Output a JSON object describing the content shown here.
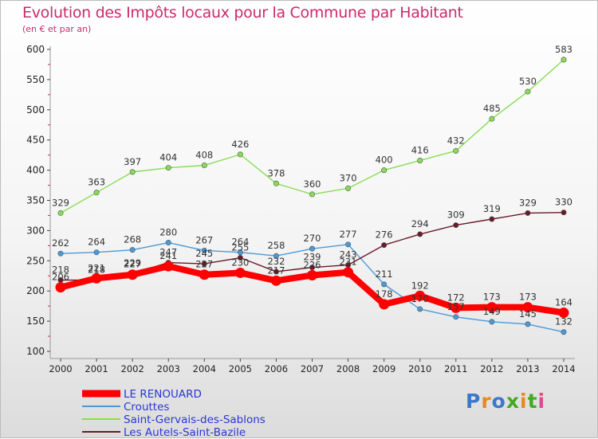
{
  "header": {
    "title": "Evolution des Impôts locaux pour la Commune par Habitant",
    "subtitle": "(en € et par an)"
  },
  "brand": {
    "name": "Proxiti",
    "colors": [
      "#3a78c8",
      "#e88a1a",
      "#3a78c8",
      "#44aa22",
      "#e88a1a",
      "#44aa22",
      "#e04a8a"
    ]
  },
  "chart_data": {
    "type": "line",
    "title": "Evolution des Impôts locaux pour la Commune par Habitant",
    "subtitle": "(en € et par an)",
    "xlabel": "",
    "ylabel": "",
    "x": [
      "2000",
      "2001",
      "2002",
      "2003",
      "2004",
      "2005",
      "2006",
      "2007",
      "2008",
      "2009",
      "2010",
      "2011",
      "2012",
      "2013",
      "2014"
    ],
    "ylim": [
      100,
      600
    ],
    "yticks": [
      100,
      150,
      200,
      250,
      300,
      350,
      400,
      450,
      500,
      550,
      600
    ],
    "grid": false,
    "legend": "bottom-left",
    "series": [
      {
        "name": "LE RENOUARD",
        "color": "#ff0000",
        "values": [
          206,
          221,
          227,
          241,
          227,
          230,
          217,
          226,
          231,
          178,
          192,
          172,
          173,
          173,
          164
        ]
      },
      {
        "name": "Crouttes",
        "color": "#4a9ad8",
        "values": [
          262,
          264,
          268,
          280,
          267,
          264,
          258,
          270,
          277,
          211,
          170,
          157,
          149,
          145,
          132
        ]
      },
      {
        "name": "Saint-Gervais-des-Sablons",
        "color": "#88dd55",
        "values": [
          329,
          363,
          397,
          404,
          408,
          426,
          378,
          360,
          370,
          400,
          416,
          432,
          485,
          530,
          583
        ]
      },
      {
        "name": "Les Autels-Saint-Bazile",
        "color": "#6b1a2a",
        "values": [
          218,
          218,
          229,
          247,
          245,
          255,
          232,
          239,
          243,
          276,
          294,
          309,
          319,
          329,
          330
        ]
      }
    ]
  }
}
